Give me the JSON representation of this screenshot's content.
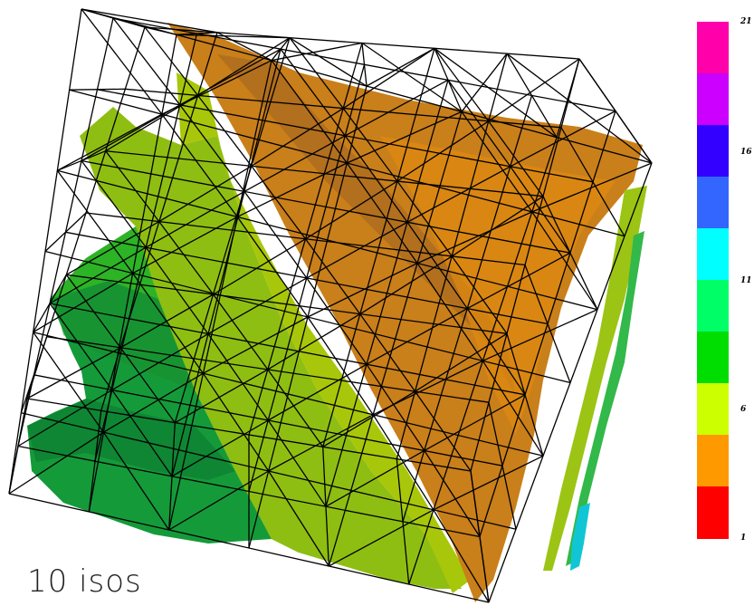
{
  "caption": "10 isos",
  "legend": {
    "bands_bottom_to_top": [
      "#ff0000",
      "#ff9900",
      "#ccff00",
      "#00dd00",
      "#00ff66",
      "#00ffff",
      "#3366ff",
      "#3300ff",
      "#cc00ff",
      "#ff00aa"
    ],
    "tick_labels": [
      {
        "label": "21",
        "position": "top"
      },
      {
        "label": "16",
        "position": "between 3rd and 4th band from top"
      },
      {
        "label": "11",
        "position": "between 5th and 6th band from top"
      },
      {
        "label": "6",
        "position": "between 7th and 8th band from top"
      },
      {
        "label": "1",
        "position": "bottom"
      }
    ]
  },
  "scene": {
    "description_type": "3d-isosurface-render",
    "visible_iso_colors": [
      "#009944",
      "#22bb22",
      "#66cc11",
      "#aacc00",
      "#cc7a00",
      "#00ccdd"
    ],
    "wireframe_color": "#000000"
  }
}
